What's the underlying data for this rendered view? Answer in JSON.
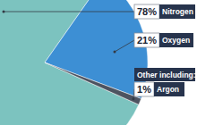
{
  "chart_data": {
    "type": "pie",
    "labels": [
      "Nitrogen",
      "Oxygen",
      "Argon"
    ],
    "values": [
      78,
      21,
      1
    ],
    "value_labels": [
      "78%",
      "21%",
      "1%"
    ],
    "colors": [
      "#7cc3bf",
      "#3d8fd4",
      "#4d5360"
    ],
    "annotations": [
      "Other including:"
    ],
    "data_labels": true
  }
}
